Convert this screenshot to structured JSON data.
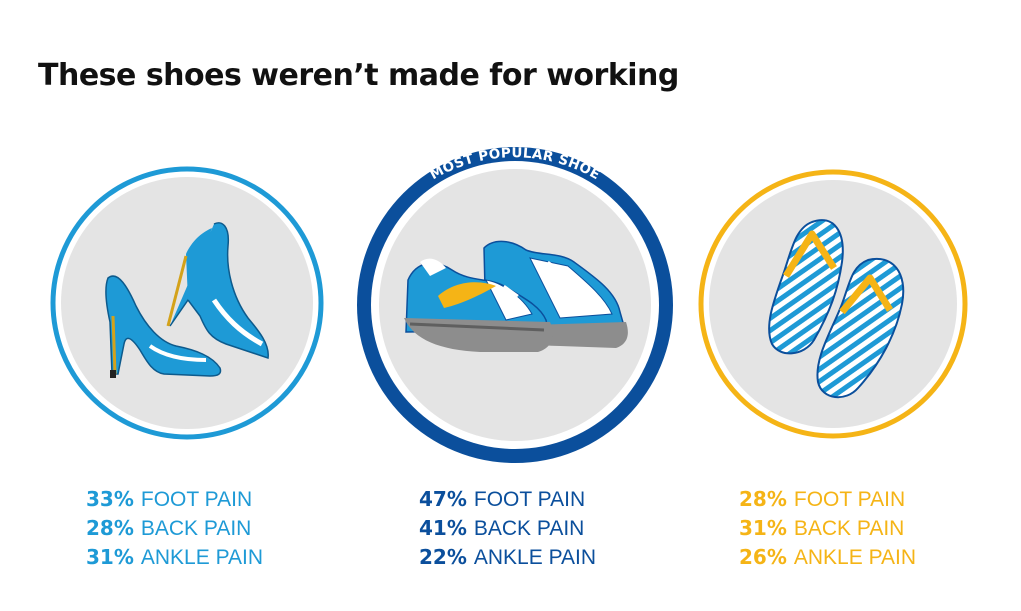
{
  "title": "These shoes weren’t made for working",
  "badge_text": "MOST POPULAR SHOE",
  "colors": {
    "heels": "#1e9ad6",
    "sneakers": "#0b4f9c",
    "flipflops": "#f5b416",
    "circle_fill": "#e4e4e4"
  },
  "chart_data": {
    "type": "table",
    "title": "These shoes weren’t made for working",
    "categories": [
      "FOOT PAIN",
      "BACK PAIN",
      "ANKLE PAIN"
    ],
    "unit": "%",
    "series": [
      {
        "icon": "high-heels-icon",
        "color": "#1e9ad6",
        "values": [
          33,
          28,
          31
        ],
        "labels": [
          "33%",
          "28%",
          "31%"
        ]
      },
      {
        "icon": "sneakers-icon",
        "color": "#0b4f9c",
        "badge": "MOST POPULAR SHOE",
        "values": [
          47,
          41,
          22
        ],
        "labels": [
          "47%",
          "41%",
          "22%"
        ]
      },
      {
        "icon": "flip-flops-icon",
        "color": "#f5b416",
        "values": [
          28,
          31,
          26
        ],
        "labels": [
          "28%",
          "31%",
          "26%"
        ]
      }
    ]
  }
}
